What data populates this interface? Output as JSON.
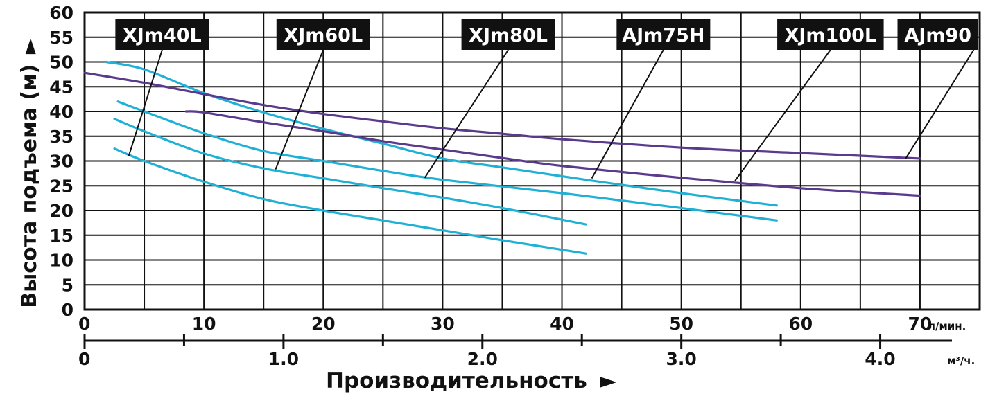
{
  "chart_data": {
    "type": "line",
    "ylabel": "Высота подъема (м)",
    "ylabel_arrow": "►",
    "xlabel": "Производительность",
    "xlabel_arrow": "►",
    "x_unit_top": "л/мин.",
    "x_unit_bottom": "м³/ч.",
    "xlim": [
      0,
      75
    ],
    "ylim": [
      0,
      60
    ],
    "grid": true,
    "y_ticks": [
      0,
      5,
      10,
      15,
      20,
      25,
      30,
      35,
      40,
      45,
      50,
      55,
      60
    ],
    "x_ticks_top": [
      {
        "value": 0,
        "label": "0"
      },
      {
        "value": 10,
        "label": "10"
      },
      {
        "value": 20,
        "label": "20"
      },
      {
        "value": 30,
        "label": "30"
      },
      {
        "value": 40,
        "label": "40"
      },
      {
        "value": 50,
        "label": "50"
      },
      {
        "value": 60,
        "label": "60"
      },
      {
        "value": 70,
        "label": "70"
      }
    ],
    "x_ticks_bottom": [
      {
        "value": 0,
        "label": "0"
      },
      {
        "value": 1.0,
        "label": "1.0"
      },
      {
        "value": 2.0,
        "label": "2.0"
      },
      {
        "value": 3.0,
        "label": "3.0"
      },
      {
        "value": 4.0,
        "label": "4.0"
      }
    ],
    "colors": {
      "xjm": "#1fb0d6",
      "ajm": "#5a3a8c",
      "label_bg": "#111111"
    },
    "series": [
      {
        "name": "XJm40L",
        "color": "#1fb0d6",
        "points": [
          [
            2.5,
            32.5
          ],
          [
            5,
            30
          ],
          [
            10,
            25.8
          ],
          [
            15,
            22.3
          ],
          [
            20,
            20
          ],
          [
            25,
            18
          ],
          [
            30,
            16
          ],
          [
            35,
            14
          ],
          [
            42,
            11.3
          ]
        ],
        "pointer": [
          3.7,
          31
        ]
      },
      {
        "name": "XJm60L",
        "color": "#1fb0d6",
        "points": [
          [
            2.5,
            38.5
          ],
          [
            5,
            36
          ],
          [
            10,
            31.5
          ],
          [
            15,
            28.5
          ],
          [
            20,
            26.5
          ],
          [
            25,
            24.5
          ],
          [
            30,
            22.6
          ],
          [
            35,
            20.5
          ],
          [
            42,
            17.2
          ]
        ],
        "pointer": [
          16,
          28.3
        ]
      },
      {
        "name": "XJm80L",
        "color": "#1fb0d6",
        "points": [
          [
            2.8,
            42
          ],
          [
            5,
            40
          ],
          [
            10,
            35.6
          ],
          [
            15,
            32
          ],
          [
            20,
            30
          ],
          [
            25,
            28
          ],
          [
            30,
            26.2
          ],
          [
            40,
            23.5
          ],
          [
            50,
            20.5
          ],
          [
            58,
            18
          ]
        ],
        "pointer": [
          28.5,
          26.6
        ]
      },
      {
        "name": "AJm75H",
        "color": "#1fb0d6",
        "points": [
          [
            1.8,
            50
          ],
          [
            5,
            48.5
          ],
          [
            10,
            43.7
          ],
          [
            15,
            39.8
          ],
          [
            20,
            36.5
          ],
          [
            25,
            33.5
          ],
          [
            30,
            30.5
          ],
          [
            35,
            28.7
          ],
          [
            42,
            26.2
          ],
          [
            50,
            23.5
          ],
          [
            58,
            21
          ]
        ],
        "pointer": [
          42.5,
          26.5
        ]
      },
      {
        "name": "XJm100L",
        "color": "#5a3a8c",
        "points": [
          [
            8.5,
            40
          ],
          [
            10,
            39.8
          ],
          [
            15,
            37.8
          ],
          [
            20,
            36
          ],
          [
            25,
            34
          ],
          [
            30,
            32.3
          ],
          [
            35,
            30.6
          ],
          [
            40,
            29
          ],
          [
            50,
            26.6
          ],
          [
            60,
            24.5
          ],
          [
            70,
            23
          ]
        ],
        "pointer": [
          54.5,
          26
        ]
      },
      {
        "name": "AJm90",
        "color": "#5a3a8c",
        "points": [
          [
            0,
            47.8
          ],
          [
            5,
            45.8
          ],
          [
            10,
            43.5
          ],
          [
            15,
            41.3
          ],
          [
            20,
            39.5
          ],
          [
            25,
            38
          ],
          [
            30,
            36.6
          ],
          [
            35,
            35.5
          ],
          [
            40,
            34.4
          ],
          [
            50,
            32.7
          ],
          [
            60,
            31.6
          ],
          [
            70,
            30.5
          ]
        ],
        "pointer": [
          68.8,
          30.5
        ]
      }
    ],
    "labels": [
      {
        "series": "XJm40L",
        "text": "XJm40L",
        "anchor_x": 6.5
      },
      {
        "series": "XJm60L",
        "text": "XJm60L",
        "anchor_x": 20.0
      },
      {
        "series": "XJm80L",
        "text": "XJm80L",
        "anchor_x": 35.5
      },
      {
        "series": "AJm75H",
        "text": "AJm75H",
        "anchor_x": 48.5
      },
      {
        "series": "XJm100L",
        "text": "XJm100L",
        "anchor_x": 62.5
      },
      {
        "series": "AJm90",
        "text": "AJm90",
        "anchor_x": 74.5
      }
    ]
  }
}
